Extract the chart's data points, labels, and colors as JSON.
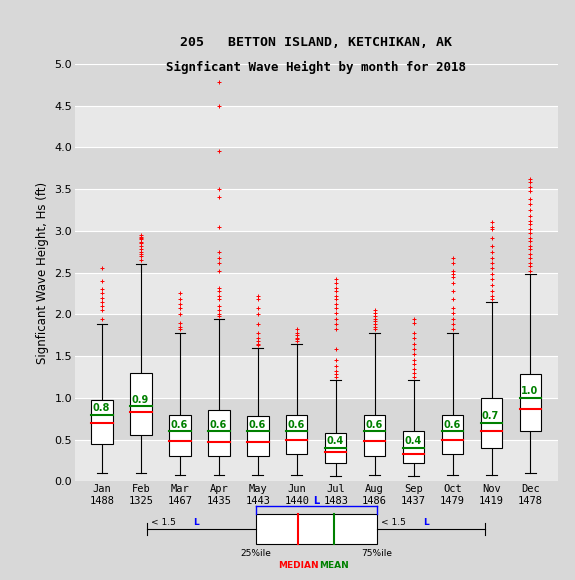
{
  "title1": "205   BETTON ISLAND, KETCHIKAN, AK",
  "title2": "Signficant Wave Height by month for 2018",
  "ylabel": "Signficant Wave Height, Hs (ft)",
  "months": [
    "Jan",
    "Feb",
    "Mar",
    "Apr",
    "May",
    "Jun",
    "Jul",
    "Aug",
    "Sep",
    "Oct",
    "Nov",
    "Dec"
  ],
  "counts": [
    1488,
    1325,
    1467,
    1435,
    1443,
    1440,
    1483,
    1486,
    1437,
    1479,
    1419,
    1478
  ],
  "ylim": [
    0.0,
    5.0
  ],
  "yticks": [
    0.0,
    0.5,
    1.0,
    1.5,
    2.0,
    2.5,
    3.0,
    3.5,
    4.0,
    4.5,
    5.0
  ],
  "means": [
    0.8,
    0.9,
    0.6,
    0.6,
    0.6,
    0.6,
    0.4,
    0.6,
    0.4,
    0.6,
    0.7,
    1.0
  ],
  "medians": [
    0.7,
    0.83,
    0.48,
    0.47,
    0.47,
    0.5,
    0.35,
    0.48,
    0.33,
    0.5,
    0.6,
    0.87
  ],
  "q1": [
    0.45,
    0.55,
    0.3,
    0.3,
    0.3,
    0.33,
    0.22,
    0.3,
    0.22,
    0.33,
    0.4,
    0.6
  ],
  "q3": [
    0.98,
    1.3,
    0.8,
    0.85,
    0.78,
    0.8,
    0.58,
    0.8,
    0.6,
    0.8,
    1.0,
    1.28
  ],
  "whislo": [
    0.1,
    0.1,
    0.08,
    0.08,
    0.08,
    0.08,
    0.07,
    0.08,
    0.07,
    0.08,
    0.08,
    0.1
  ],
  "whishi": [
    1.88,
    2.6,
    1.78,
    1.95,
    1.6,
    1.65,
    1.22,
    1.78,
    1.22,
    1.78,
    2.15,
    2.48
  ],
  "fliers_y": [
    [
      1.95,
      2.05,
      2.1,
      2.15,
      2.2,
      2.25,
      2.3,
      2.4,
      2.55
    ],
    [
      2.65,
      2.7,
      2.72,
      2.75,
      2.78,
      2.82,
      2.85,
      2.87,
      2.9,
      2.92,
      2.93,
      2.95
    ],
    [
      1.82,
      1.85,
      1.9,
      2.0,
      2.08,
      2.12,
      2.18,
      2.25
    ],
    [
      1.98,
      2.0,
      2.05,
      2.1,
      2.18,
      2.22,
      2.28,
      2.32,
      2.52,
      2.62,
      2.68,
      2.75,
      3.05,
      3.4,
      3.5,
      3.95,
      4.5,
      4.78
    ],
    [
      1.63,
      1.65,
      1.68,
      1.72,
      1.78,
      1.88,
      2.0,
      2.08,
      2.18,
      2.22
    ],
    [
      1.68,
      1.7,
      1.72,
      1.75,
      1.78,
      1.82
    ],
    [
      1.25,
      1.28,
      1.32,
      1.38,
      1.45,
      1.58,
      1.82,
      1.88,
      1.95,
      2.02,
      2.08,
      2.12,
      2.18,
      2.22,
      2.28,
      2.32,
      2.38,
      2.42
    ],
    [
      1.82,
      1.85,
      1.88,
      1.92,
      1.95,
      1.98,
      2.02,
      2.05
    ],
    [
      1.25,
      1.3,
      1.35,
      1.4,
      1.45,
      1.52,
      1.58,
      1.65,
      1.72,
      1.78,
      1.9,
      1.95
    ],
    [
      1.82,
      1.88,
      1.95,
      2.02,
      2.08,
      2.18,
      2.28,
      2.38,
      2.45,
      2.48,
      2.52,
      2.62,
      2.68
    ],
    [
      2.18,
      2.22,
      2.28,
      2.35,
      2.42,
      2.48,
      2.55,
      2.62,
      2.68,
      2.75,
      2.82,
      2.92,
      3.02,
      3.05,
      3.1
    ],
    [
      2.52,
      2.58,
      2.62,
      2.68,
      2.72,
      2.78,
      2.82,
      2.88,
      2.92,
      2.98,
      3.02,
      3.08,
      3.12,
      3.18,
      3.25,
      3.32,
      3.38,
      3.48,
      3.52,
      3.58,
      3.62
    ]
  ],
  "bg_color": "#d8d8d8",
  "stripe_color": "#e8e8e8",
  "box_color": "white",
  "median_color": "red",
  "mean_color": "green",
  "flier_color": "red",
  "box_width": 0.55,
  "cap_ratio": 0.5
}
